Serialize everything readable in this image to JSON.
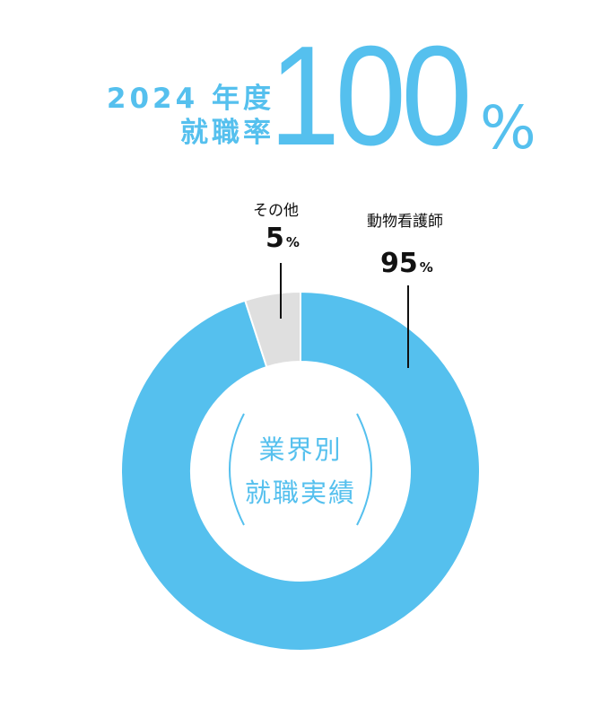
{
  "header": {
    "year_label": "2024 年度",
    "rate_label": "就職率",
    "rate_value": "100",
    "rate_unit": "%"
  },
  "chart_data": {
    "type": "pie",
    "title": "業界別 就職実績",
    "title_line1": "業界別",
    "title_line2": "就職実績",
    "categories": [
      "動物看護師",
      "その他"
    ],
    "values": [
      95,
      5
    ],
    "value_labels": [
      "95",
      "5"
    ],
    "unit": "%",
    "colors": [
      "#55c0ee",
      "#dfdfdf"
    ]
  }
}
